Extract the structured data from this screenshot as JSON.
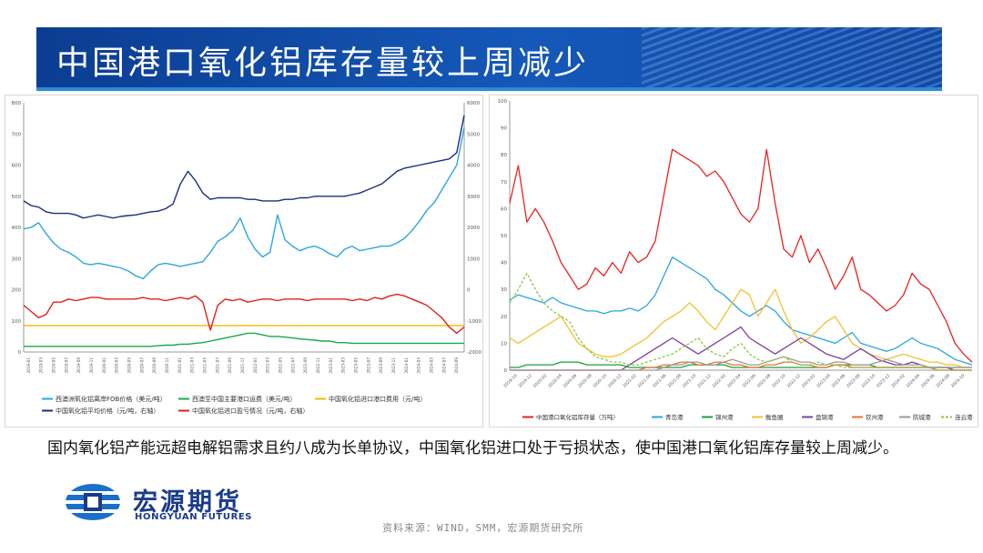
{
  "page": {
    "title": "中国港口氧化铝库存量较上周减少",
    "caption": "国内氧化铝产能远超电解铝需求且约八成为长单协议，中国氧化铝进口处于亏损状态，使中国港口氧化铝库存量较上周减少。",
    "source": "资料来源：WIND，SMM，宏源期货研究所",
    "logo": {
      "cn": "宏源期货",
      "en": "HONGYUAN FUTURES"
    }
  },
  "chart_data": [
    {
      "type": "line",
      "title": "",
      "x_range": [
        "2019-01",
        "2024-10"
      ],
      "ylim_left": [
        0,
        800
      ],
      "yticks_left": [
        0,
        100,
        200,
        300,
        400,
        500,
        600,
        700,
        800
      ],
      "ylim_right": [
        -2000,
        6000
      ],
      "yticks_right": [
        -2000,
        -1000,
        0,
        1000,
        2000,
        3000,
        4000,
        5000,
        6000
      ],
      "grid": false,
      "legend_position": "bottom",
      "series": [
        {
          "name": "西澳洲氧化铝离岸FOB价格（美元/吨）",
          "axis": "left",
          "color": "#2aa6e0",
          "values": [
            395,
            400,
            415,
            380,
            350,
            330,
            320,
            305,
            285,
            280,
            285,
            280,
            275,
            270,
            260,
            245,
            235,
            260,
            280,
            285,
            280,
            275,
            280,
            285,
            290,
            320,
            355,
            370,
            390,
            430,
            370,
            330,
            305,
            320,
            440,
            360,
            340,
            325,
            335,
            340,
            330,
            315,
            305,
            330,
            340,
            325,
            330,
            335,
            340,
            340,
            350,
            365,
            390,
            420,
            455,
            480,
            520,
            560,
            600,
            720
          ]
        },
        {
          "name": "西澳至中国主要港口运费（美元/吨）",
          "axis": "left",
          "color": "#19a84b",
          "values": [
            18,
            18,
            18,
            18,
            18,
            18,
            18,
            18,
            18,
            18,
            18,
            18,
            18,
            18,
            18,
            18,
            18,
            18,
            20,
            22,
            22,
            25,
            25,
            28,
            30,
            35,
            40,
            45,
            50,
            55,
            60,
            60,
            55,
            50,
            50,
            48,
            45,
            42,
            40,
            38,
            35,
            35,
            30,
            30,
            28,
            28,
            28,
            28,
            28,
            28,
            28,
            28,
            28,
            28,
            28,
            28,
            28,
            28,
            28,
            28
          ]
        },
        {
          "name": "中国氧化铝进口港口费用（元/吨）",
          "axis": "left",
          "color": "#f5b800",
          "values": [
            85,
            85,
            85,
            85,
            85,
            85,
            85,
            85,
            85,
            85,
            85,
            85,
            85,
            85,
            85,
            85,
            85,
            85,
            85,
            85,
            85,
            85,
            85,
            85,
            85,
            85,
            85,
            85,
            85,
            85,
            85,
            85,
            85,
            85,
            85,
            85,
            85,
            85,
            85,
            85,
            85,
            85,
            85,
            85,
            85,
            85,
            85,
            85,
            85,
            85,
            85,
            85,
            85,
            85,
            85,
            85,
            85,
            85,
            85,
            85
          ]
        },
        {
          "name": "中国氧化铝平均价格（元/吨，右轴）",
          "axis": "right",
          "color": "#1a2f7a",
          "values": [
            2850,
            2700,
            2650,
            2500,
            2450,
            2450,
            2450,
            2400,
            2300,
            2350,
            2400,
            2350,
            2300,
            2350,
            2380,
            2400,
            2450,
            2500,
            2520,
            2600,
            2750,
            3400,
            3800,
            3500,
            3100,
            2900,
            2950,
            2950,
            2950,
            2950,
            2900,
            2900,
            2850,
            2850,
            2850,
            2900,
            2900,
            2950,
            2950,
            3000,
            3000,
            3000,
            3000,
            3000,
            3050,
            3100,
            3200,
            3300,
            3400,
            3600,
            3800,
            3900,
            3950,
            4000,
            4050,
            4100,
            4150,
            4200,
            4400,
            5600
          ]
        },
        {
          "name": "中国氧化铝进口盈亏情况（元/吨，右轴）",
          "axis": "right",
          "color": "#e02020",
          "values": [
            -500,
            -700,
            -900,
            -800,
            -400,
            -400,
            -300,
            -350,
            -300,
            -250,
            -250,
            -300,
            -300,
            -300,
            -300,
            -300,
            -250,
            -300,
            -300,
            -350,
            -300,
            -250,
            -300,
            -200,
            -400,
            -1300,
            -500,
            -300,
            -350,
            -300,
            -400,
            -350,
            -300,
            -300,
            -350,
            -300,
            -300,
            -300,
            -350,
            -300,
            -300,
            -300,
            -300,
            -300,
            -350,
            -300,
            -350,
            -250,
            -300,
            -200,
            -150,
            -200,
            -300,
            -400,
            -500,
            -700,
            -900,
            -1200,
            -1400,
            -1200
          ]
        }
      ]
    },
    {
      "type": "line",
      "title": "",
      "x_range": [
        "2019-10",
        "2024-10"
      ],
      "ylim": [
        0,
        100
      ],
      "yticks": [
        0,
        10,
        20,
        30,
        40,
        50,
        60,
        70,
        80,
        90,
        100
      ],
      "grid": false,
      "legend_position": "bottom",
      "series": [
        {
          "name": "中国港口氧化铝库存量（万吨）",
          "color": "#e52421",
          "values": [
            62,
            76,
            55,
            60,
            55,
            48,
            40,
            35,
            30,
            32,
            38,
            35,
            40,
            36,
            44,
            40,
            42,
            48,
            65,
            82,
            80,
            78,
            76,
            72,
            74,
            70,
            64,
            58,
            55,
            60,
            82,
            62,
            45,
            42,
            50,
            40,
            45,
            38,
            30,
            35,
            42,
            30,
            28,
            25,
            22,
            24,
            28,
            36,
            32,
            30,
            24,
            18,
            10,
            6,
            3
          ]
        },
        {
          "name": "青岛港",
          "color": "#2aa6e0",
          "values": [
            26,
            28,
            27,
            26,
            25,
            27,
            25,
            24,
            23,
            22,
            22,
            21,
            22,
            22,
            23,
            22,
            24,
            28,
            35,
            42,
            40,
            38,
            36,
            34,
            30,
            28,
            25,
            22,
            20,
            22,
            24,
            22,
            18,
            15,
            14,
            13,
            12,
            11,
            10,
            12,
            14,
            10,
            9,
            8,
            7,
            8,
            10,
            12,
            10,
            9,
            8,
            6,
            4,
            3,
            2
          ]
        },
        {
          "name": "锦州港",
          "color": "#1e9e3c",
          "values": [
            1,
            1,
            2,
            2,
            2,
            2,
            3,
            3,
            3,
            2,
            2,
            2,
            2,
            2,
            1,
            1,
            1,
            1,
            1,
            1,
            1,
            2,
            2,
            2,
            2,
            2,
            1,
            1,
            1,
            1,
            1,
            1,
            1,
            1,
            1,
            1,
            1,
            1,
            2,
            2,
            2,
            2,
            2,
            1,
            1,
            1,
            1,
            1,
            1,
            1,
            1,
            1,
            1,
            1,
            1
          ]
        },
        {
          "name": "鲅鱼圈",
          "color": "#f2c12e",
          "values": [
            12,
            10,
            12,
            14,
            16,
            18,
            20,
            15,
            10,
            8,
            6,
            5,
            5,
            6,
            8,
            10,
            12,
            15,
            18,
            20,
            22,
            25,
            22,
            18,
            15,
            20,
            25,
            30,
            28,
            20,
            25,
            30,
            22,
            15,
            10,
            12,
            15,
            18,
            20,
            15,
            10,
            8,
            6,
            5,
            4,
            5,
            6,
            5,
            4,
            3,
            3,
            2,
            2,
            1,
            1
          ]
        },
        {
          "name": "盘锦港",
          "color": "#7b3fa0",
          "values": [
            0,
            0,
            0,
            0,
            0,
            0,
            0,
            0,
            0,
            0,
            0,
            0,
            0,
            0,
            2,
            4,
            6,
            8,
            10,
            12,
            10,
            8,
            6,
            8,
            10,
            12,
            14,
            16,
            12,
            10,
            8,
            6,
            8,
            10,
            12,
            10,
            8,
            6,
            5,
            4,
            6,
            8,
            6,
            4,
            3,
            2,
            2,
            3,
            2,
            1,
            1,
            1,
            0,
            0,
            0
          ]
        },
        {
          "name": "钦州港",
          "color": "#e8742b",
          "values": [
            0,
            0,
            0,
            0,
            0,
            0,
            0,
            0,
            0,
            0,
            0,
            0,
            0,
            0,
            0,
            0,
            1,
            1,
            2,
            2,
            3,
            3,
            2,
            2,
            3,
            3,
            2,
            2,
            1,
            1,
            2,
            2,
            3,
            3,
            2,
            2,
            1,
            1,
            2,
            2,
            1,
            1,
            1,
            1,
            1,
            1,
            1,
            1,
            1,
            1,
            0,
            0,
            0,
            0,
            0
          ]
        },
        {
          "name": "防城港",
          "color": "#9a9a9a",
          "values": [
            0,
            0,
            0,
            0,
            0,
            0,
            0,
            0,
            0,
            0,
            0,
            0,
            0,
            0,
            0,
            0,
            0,
            0,
            1,
            2,
            2,
            3,
            3,
            2,
            2,
            3,
            4,
            3,
            2,
            2,
            3,
            4,
            5,
            4,
            3,
            3,
            2,
            2,
            3,
            3,
            2,
            2,
            2,
            3,
            4,
            3,
            2,
            2,
            2,
            1,
            1,
            1,
            1,
            1,
            1
          ]
        },
        {
          "name": "连云港",
          "color": "#8cc63f",
          "dashed": true,
          "values": [
            25,
            30,
            36,
            30,
            25,
            22,
            20,
            18,
            12,
            8,
            5,
            4,
            3,
            3,
            2,
            2,
            3,
            4,
            5,
            6,
            8,
            10,
            12,
            8,
            6,
            5,
            8,
            10,
            6,
            4,
            3,
            4,
            5,
            3,
            2,
            2,
            3,
            2,
            2,
            1,
            1,
            1,
            1,
            1,
            1,
            1,
            1,
            1,
            1,
            1,
            0,
            0,
            0,
            0,
            0
          ]
        }
      ]
    }
  ]
}
